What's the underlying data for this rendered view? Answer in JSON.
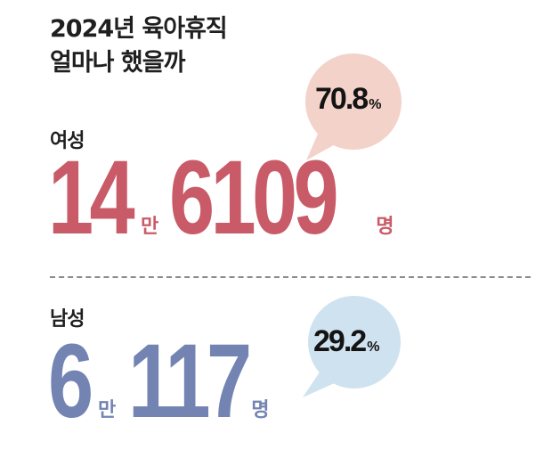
{
  "title": {
    "line1": "2024년 육아휴직",
    "line2": "얼마나 했을까"
  },
  "female": {
    "label": "여성",
    "count_part1": "14",
    "unit1": "만",
    "count_part2": "6109",
    "unit2": "명",
    "percent_value": "70.8",
    "percent_sign": "%",
    "color": "#c95b68",
    "bubble_color": "#f3d2c9"
  },
  "male": {
    "label": "남성",
    "count_part1": "6",
    "unit1": "만",
    "count_part2": "117",
    "unit2": "명",
    "percent_value": "29.2",
    "percent_sign": "%",
    "color": "#7384b3",
    "bubble_color": "#cfe2ef"
  }
}
